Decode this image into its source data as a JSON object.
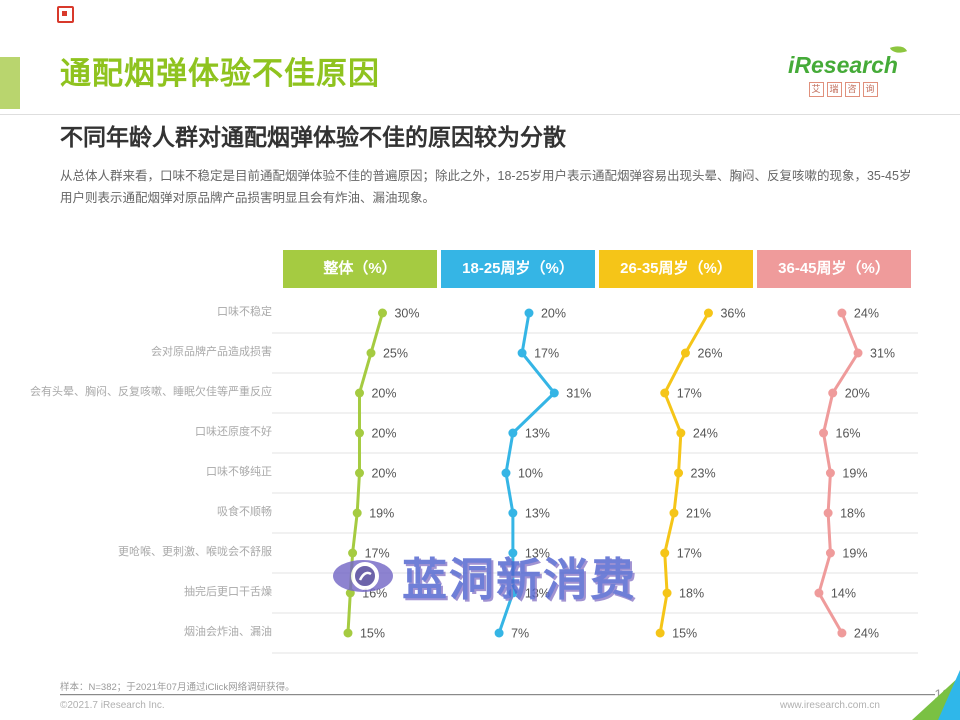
{
  "page": {
    "title": "通配烟弹体验不佳原因",
    "subtitle": "不同年龄人群对通配烟弹体验不佳的原因较为分散",
    "description": "从总体人群来看，口味不稳定是目前通配烟弹体验不佳的普遍原因；除此之外，18-25岁用户表示通配烟弹容易出现头晕、胸闷、反复咳嗽的现象，35-45岁用户则表示通配烟弹对原品牌产品损害明显且会有炸油、漏油现象。"
  },
  "brand": {
    "logo_text": "iResearch",
    "logo_sub_chars": [
      "艾",
      "瑞",
      "咨",
      "询"
    ]
  },
  "watermark": {
    "text": "蓝洞新消费"
  },
  "footer": {
    "sample_note": "样本：N=382；于2021年07月通过iClick网络调研获得。",
    "copyright": "©2021.7 iResearch Inc.",
    "website": "www.iresearch.com.cn",
    "page_number": "18"
  },
  "chart_data": {
    "type": "line",
    "orientation": "vertical-panels",
    "unit": "%",
    "grid": true,
    "legend_position": "top",
    "categories": [
      "口味不稳定",
      "会对原品牌产品造成损害",
      "会有头晕、胸闷、反复咳嗽、睡眠欠佳等严重反应",
      "口味还原度不好",
      "口味不够纯正",
      "吸食不顺畅",
      "更呛喉、更刺激、喉咙会不舒服",
      "抽完后更口干舌燥",
      "烟油会炸油、漏油"
    ],
    "series": [
      {
        "name": "整体（%）",
        "color": "#a5cb41",
        "values": [
          30,
          25,
          20,
          20,
          20,
          19,
          17,
          16,
          15
        ]
      },
      {
        "name": "18-25周岁（%）",
        "color": "#35b5e5",
        "values": [
          20,
          17,
          31,
          13,
          10,
          13,
          13,
          13,
          7
        ]
      },
      {
        "name": "26-35周岁（%）",
        "color": "#f5c518",
        "values": [
          36,
          26,
          17,
          24,
          23,
          21,
          17,
          18,
          15
        ]
      },
      {
        "name": "36-45周岁（%）",
        "color": "#ef9b9b",
        "values": [
          24,
          31,
          20,
          16,
          19,
          18,
          19,
          14,
          24
        ]
      }
    ]
  }
}
